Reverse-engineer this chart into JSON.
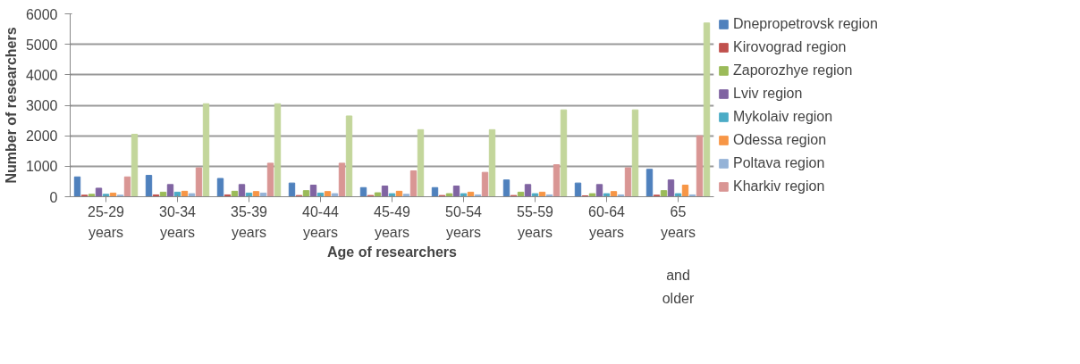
{
  "chart_data": {
    "type": "bar",
    "xlabel": "Age of researchers",
    "ylabel": "Number of researchers",
    "categories": [
      "25-29 years",
      "30-34 years",
      "35-39 years",
      "40-44 years",
      "45-49 years",
      "50-54 years",
      "55-59 years",
      "60-64 years",
      "65 years and older"
    ],
    "series": [
      {
        "name": "Dnepropetrovsk region",
        "color": "#4f81bd",
        "values": [
          650,
          700,
          600,
          450,
          300,
          300,
          550,
          450,
          900
        ]
      },
      {
        "name": "Kirovograd region",
        "color": "#c0504d",
        "values": [
          50,
          60,
          60,
          40,
          40,
          40,
          40,
          30,
          50
        ]
      },
      {
        "name": "Zaporozhye region",
        "color": "#9bbb59",
        "values": [
          80,
          150,
          180,
          200,
          130,
          100,
          150,
          100,
          200
        ]
      },
      {
        "name": "Lviv region",
        "color": "#8064a2",
        "values": [
          280,
          400,
          400,
          380,
          350,
          350,
          400,
          400,
          550
        ]
      },
      {
        "name": "Mykolaiv region",
        "color": "#4bacc6",
        "values": [
          80,
          150,
          120,
          120,
          100,
          100,
          100,
          100,
          100
        ]
      },
      {
        "name": "Odessa region",
        "color": "#f79646",
        "values": [
          120,
          180,
          170,
          170,
          180,
          150,
          150,
          170,
          380
        ]
      },
      {
        "name": "Poltava region",
        "color": "#95b3d7",
        "values": [
          50,
          100,
          120,
          100,
          80,
          60,
          60,
          60,
          60
        ]
      },
      {
        "name": "Kharkiv region",
        "color": "#d99694",
        "values": [
          650,
          950,
          1100,
          1100,
          850,
          800,
          1050,
          950,
          2000
        ]
      },
      {
        "color": "#c3d69b",
        "values": [
          2050,
          3050,
          3050,
          2650,
          2200,
          2200,
          2850,
          2850,
          5700
        ]
      }
    ],
    "ylim": [
      0,
      6000
    ],
    "yticks": [
      0,
      1000,
      2000,
      3000,
      4000,
      5000,
      6000
    ],
    "grid": "y",
    "legend": "right"
  }
}
